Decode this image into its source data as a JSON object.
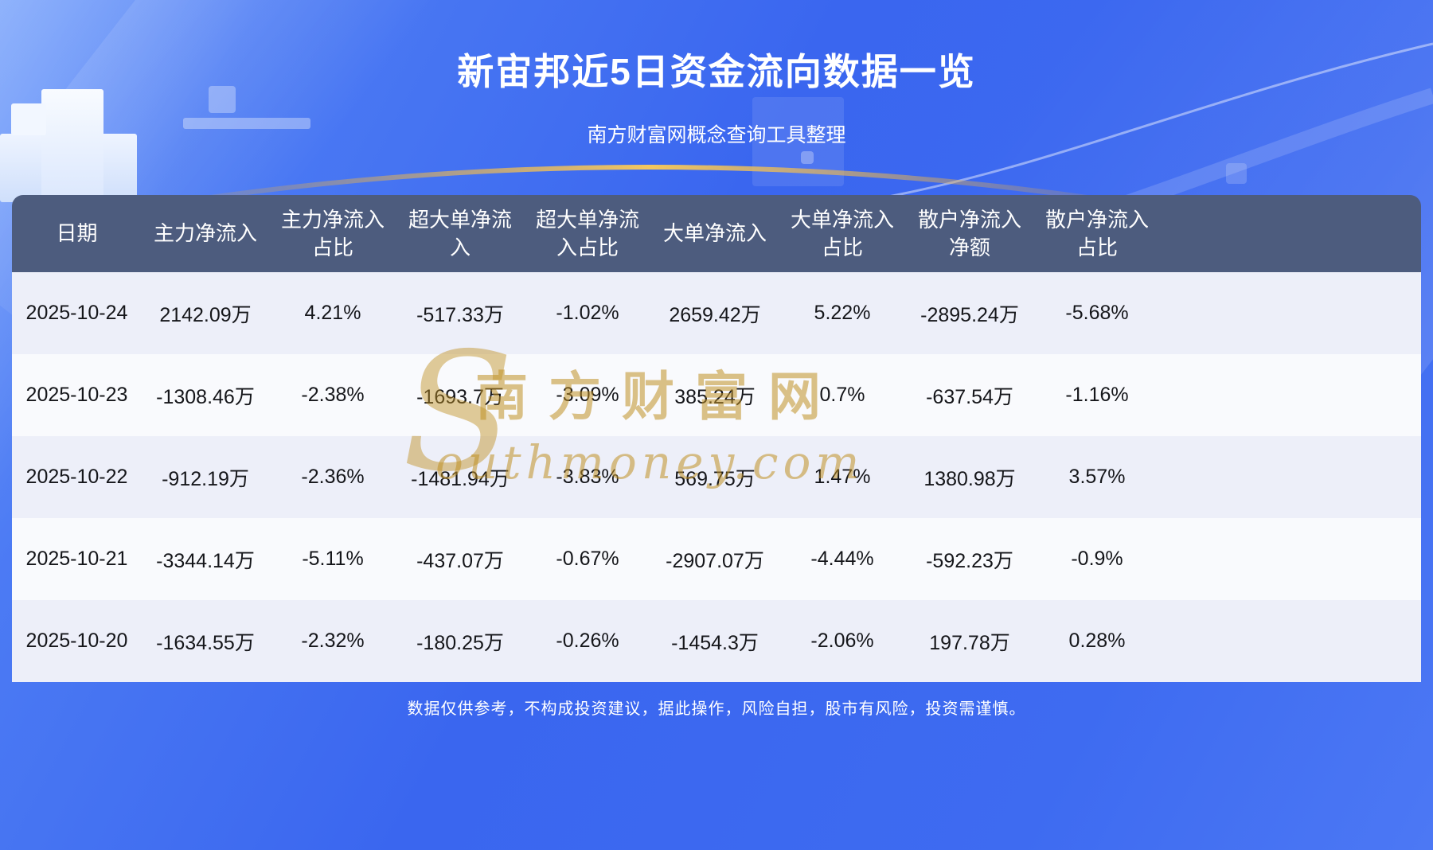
{
  "page": {
    "title": "新宙邦近5日资金流向数据一览",
    "subtitle": "南方财富网概念查询工具整理",
    "disclaimer": "数据仅供参考，不构成投资建议，据此操作，风险自担，股市有风险，投资需谨慎。"
  },
  "chart_data": {
    "type": "table",
    "title": "新宙邦近5日资金流向数据一览",
    "columns": [
      "日期",
      "主力净流入",
      "主力净流入占比",
      "超大单净流入",
      "超大单净流入占比",
      "大单净流入",
      "大单净流入占比",
      "散户净流入净额",
      "散户净流入占比"
    ],
    "rows": [
      [
        "2025-10-24",
        "2142.09万",
        "4.21%",
        "-517.33万",
        "-1.02%",
        "2659.42万",
        "5.22%",
        "-2895.24万",
        "-5.68%"
      ],
      [
        "2025-10-23",
        "-1308.46万",
        "-2.38%",
        "-1693.7万",
        "-3.09%",
        "385.24万",
        "0.7%",
        "-637.54万",
        "-1.16%"
      ],
      [
        "2025-10-22",
        "-912.19万",
        "-2.36%",
        "-1481.94万",
        "-3.83%",
        "569.75万",
        "1.47%",
        "1380.98万",
        "3.57%"
      ],
      [
        "2025-10-21",
        "-3344.14万",
        "-5.11%",
        "-437.07万",
        "-0.67%",
        "-2907.07万",
        "-4.44%",
        "-592.23万",
        "-0.9%"
      ],
      [
        "2025-10-20",
        "-1634.55万",
        "-2.32%",
        "-180.25万",
        "-0.26%",
        "-1454.3万",
        "-2.06%",
        "197.78万",
        "0.28%"
      ]
    ]
  },
  "watermark": {
    "initial": "S",
    "line1": "南方财富网",
    "line2": "outhmoney.com"
  },
  "colors": {
    "header_bg": "#4d5c7e",
    "row_odd": "#edeff9",
    "row_even": "#f9fafd",
    "text_dark": "#15161a",
    "accent_gold": "#e2a63d",
    "bg_blue": "#3d69f0",
    "bg_blue_light": "#7aa4fb"
  }
}
